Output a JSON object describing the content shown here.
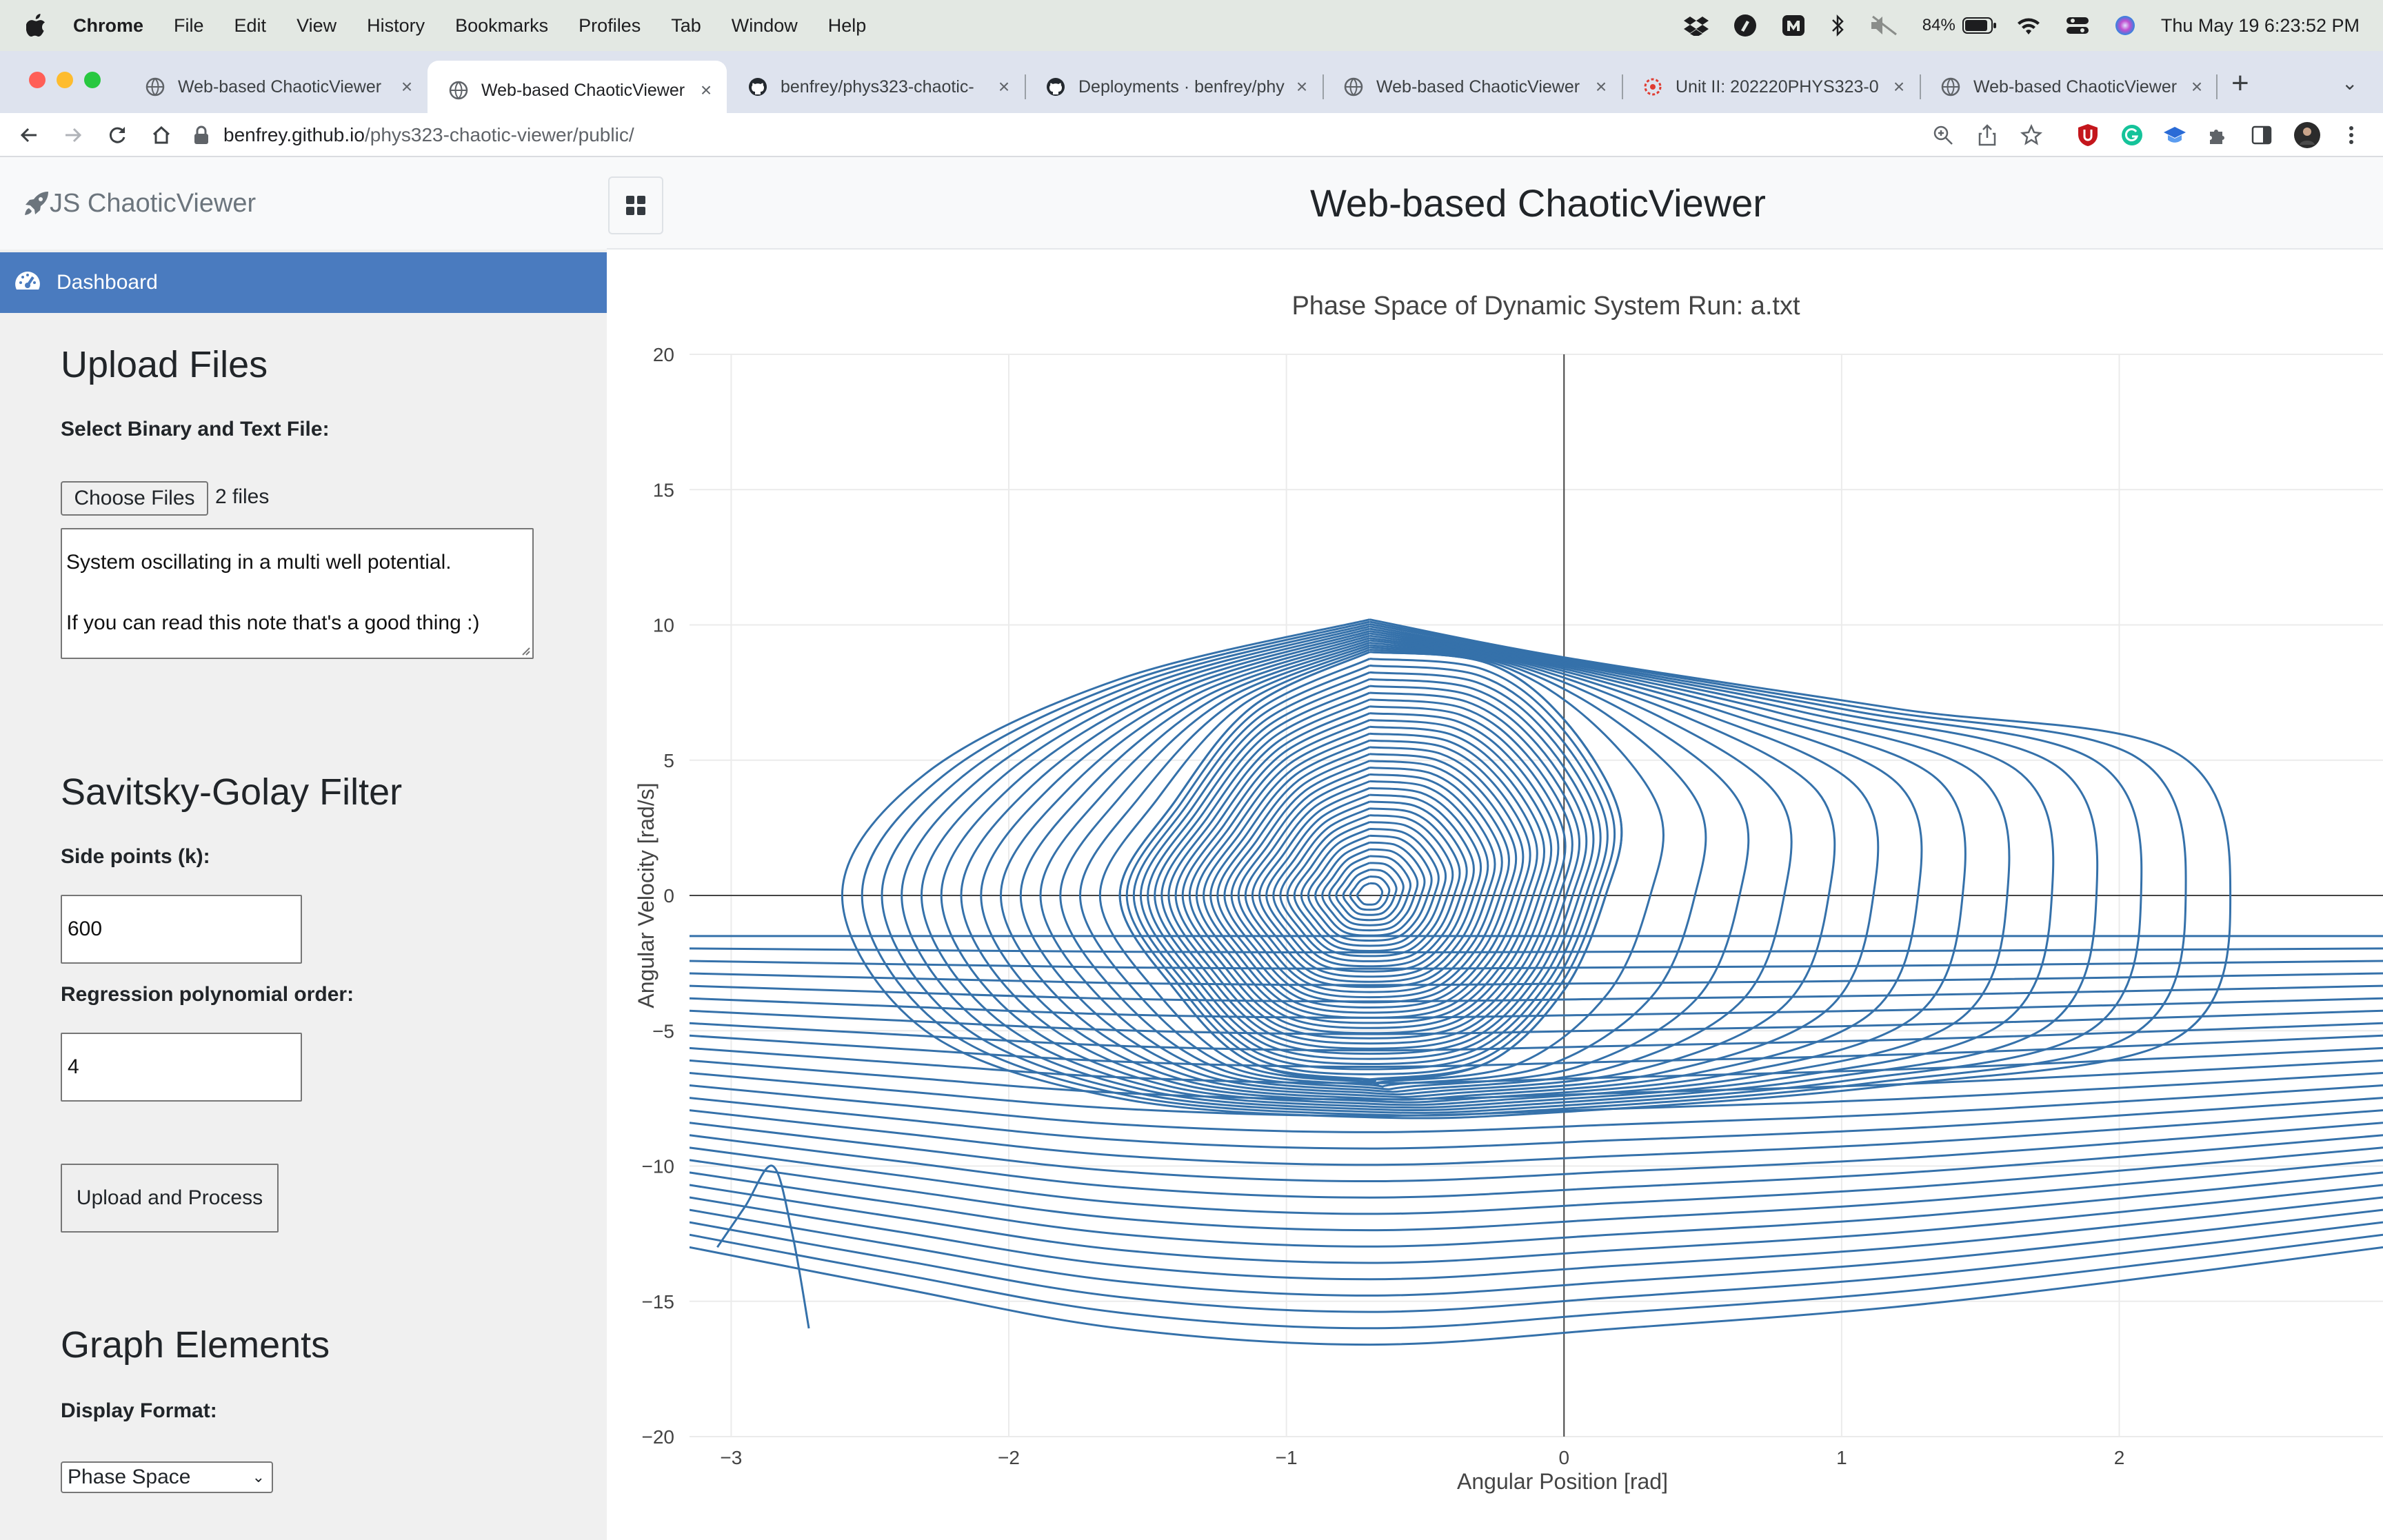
{
  "menubar": {
    "app": "Chrome",
    "items": [
      "File",
      "Edit",
      "View",
      "History",
      "Bookmarks",
      "Profiles",
      "Tab",
      "Window",
      "Help"
    ],
    "battery": "84%",
    "clock": "Thu May 19  6:23:52 PM"
  },
  "tabs": [
    {
      "title": "Web-based ChaoticViewer",
      "active": false
    },
    {
      "title": "Web-based ChaoticViewer",
      "active": true
    },
    {
      "title": "benfrey/phys323-chaotic-",
      "active": false
    },
    {
      "title": "Deployments · benfrey/phy",
      "active": false
    },
    {
      "title": "Web-based ChaoticViewer",
      "active": false
    },
    {
      "title": "Unit II: 202220PHYS323-0",
      "active": false
    },
    {
      "title": "Web-based ChaoticViewer",
      "active": false
    }
  ],
  "address": {
    "host": "benfrey.github.io",
    "path": "/phys323-chaotic-viewer/public/"
  },
  "brand": "JS ChaoticViewer",
  "page_title": "Web-based ChaoticViewer",
  "sidebar": {
    "dashboard_label": "Dashboard",
    "upload_heading": "Upload Files",
    "select_label": "Select Binary and Text File:",
    "choose_files_label": "Choose Files",
    "files_count": "2 files",
    "notes_text": "System oscillating in a multi well potential.\n\nIf you can read this note that's a good thing :)",
    "filter_heading": "Savitsky-Golay Filter",
    "side_points_label": "Side points (k):",
    "side_points_value": "600",
    "poly_order_label": "Regression polynomial order:",
    "poly_order_value": "4",
    "process_button": "Upload and Process",
    "graph_heading": "Graph Elements",
    "display_format_label": "Display Format:",
    "display_format_value": "Phase Space"
  },
  "chart_data": {
    "type": "line",
    "title": "Phase Space of Dynamic System Run: a.txt",
    "xlabel": "Angular Position [rad]",
    "ylabel": "Angular Velocity [rad/s]",
    "xlim": [
      -3.15,
      2.95
    ],
    "ylim": [
      -20,
      20
    ],
    "xticks": [
      -3,
      -2,
      -1,
      0,
      1,
      2
    ],
    "xtick_labels": [
      "−3",
      "−2",
      "−1",
      "0",
      "1",
      "2"
    ],
    "yticks": [
      20,
      15,
      10,
      5,
      0,
      -5,
      -10,
      -15,
      -20
    ],
    "ytick_labels": [
      "20",
      "15",
      "10",
      "5",
      "0",
      "−5",
      "−10",
      "−15",
      "−20"
    ],
    "grid": true,
    "color": "#3571aa",
    "series": [
      {
        "description_free": true,
        "x": [
          -0.7,
          -0.28,
          0.0,
          0.2,
          0.15,
          0.0,
          -0.28,
          -0.7,
          -1.12,
          -1.4,
          -1.6,
          -1.4,
          -1.12,
          -0.7
        ],
        "y": [
          9.0,
          8.6,
          6.5,
          3.0,
          0.0,
          -3.5,
          -6.2,
          -6.8,
          -6.2,
          -3.5,
          0.0,
          3.5,
          7.0,
          9.0
        ]
      },
      {
        "x": [
          -0.7,
          0.0,
          1.2,
          2.2,
          2.4,
          2.2,
          1.2,
          0.0,
          -0.7,
          -1.6,
          -2.3,
          -2.6,
          -2.3,
          -1.6,
          -0.7
        ],
        "y": [
          10.2,
          8.8,
          6.9,
          5.3,
          0.0,
          -5.3,
          -7.0,
          -8.0,
          -8.2,
          -7.5,
          -5.0,
          0.0,
          4.5,
          8.0,
          10.2
        ]
      },
      {
        "x": [
          -3.15,
          -2.4,
          -1.6,
          -0.7,
          0.2,
          1.2,
          2.2,
          2.95
        ],
        "y": [
          -13.0,
          -14.5,
          -16.0,
          -16.6,
          -16.0,
          -15.2,
          -14.0,
          -13.0
        ]
      },
      {
        "x": [
          -3.05,
          -2.95,
          -2.85,
          -2.78,
          -2.72
        ],
        "y": [
          -13.0,
          -11.5,
          -10.0,
          -12.5,
          -16.0
        ]
      }
    ]
  }
}
